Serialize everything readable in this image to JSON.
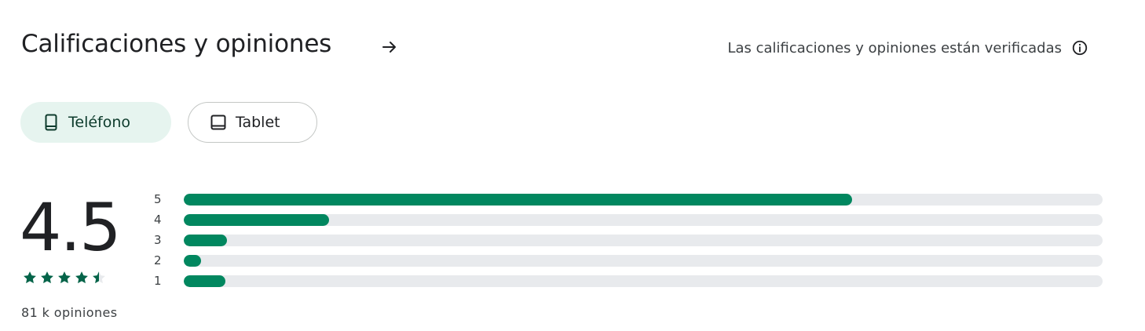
{
  "header": {
    "title": "Calificaciones y opiniones",
    "arrow_icon": "arrow-right-icon",
    "verified_text": "Las calificaciones y opiniones están verificadas",
    "info_icon": "info-icon"
  },
  "device_tabs": [
    {
      "label": "Teléfono",
      "icon": "phone-icon",
      "selected": true
    },
    {
      "label": "Tablet",
      "icon": "tablet-icon",
      "selected": false
    }
  ],
  "summary": {
    "score": "4.5",
    "stars": 4.5,
    "review_count": "81 k opiniones"
  },
  "distribution": [
    {
      "label": "5",
      "fraction": 0.727
    },
    {
      "label": "4",
      "fraction": 0.158
    },
    {
      "label": "3",
      "fraction": 0.047
    },
    {
      "label": "2",
      "fraction": 0.019
    },
    {
      "label": "1",
      "fraction": 0.045
    }
  ],
  "colors": {
    "accent": "#01875f",
    "star": "#056449",
    "track": "#e8eaed",
    "selected_chip_bg": "#e6f4ef"
  }
}
